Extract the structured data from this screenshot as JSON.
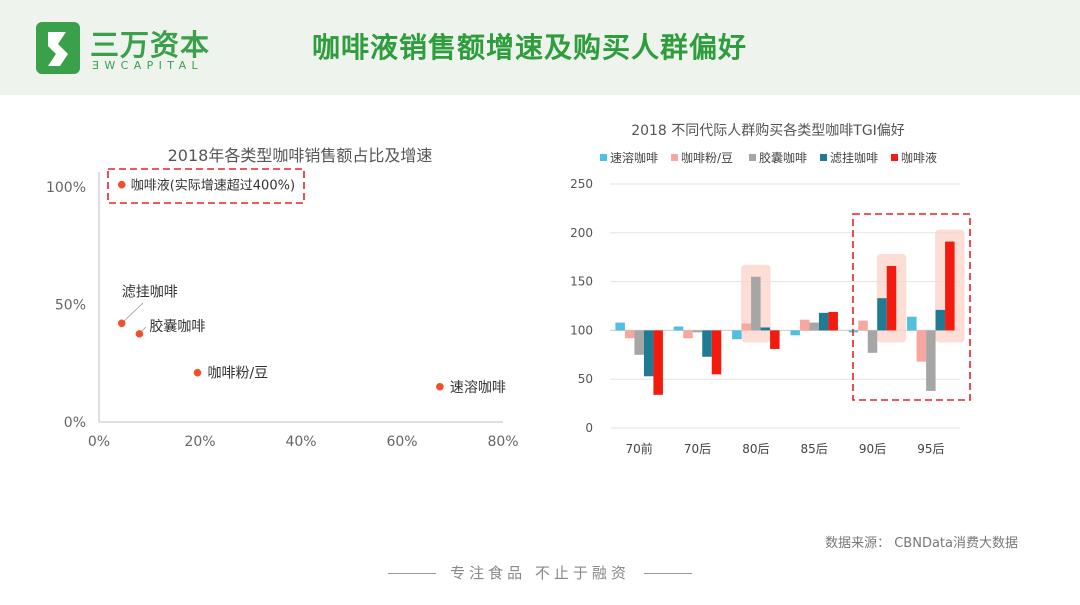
{
  "header": {
    "logo_cn": "三万资本",
    "logo_en": "ƎWCAPITAL",
    "title": "咖啡液销售额增速及购买人群偏好"
  },
  "colors": {
    "brand_green": "#3aa14a",
    "scatter_dot": "#f0502a",
    "highlight_box": "#e8212a",
    "highlight_fill": "#fbd3c8"
  },
  "chart_data": [
    {
      "type": "scatter",
      "title": "2018年各类型咖啡销售额占比及增速",
      "xlabel": "",
      "ylabel": "",
      "xlim": [
        0,
        80
      ],
      "ylim": [
        0,
        100
      ],
      "x_ticks": [
        "0%",
        "20%",
        "40%",
        "60%",
        "80%"
      ],
      "y_ticks": [
        "0%",
        "50%",
        "100%"
      ],
      "points": [
        {
          "label": "咖啡液(实际增速超过400%)",
          "x": 4.5,
          "y": 101
        },
        {
          "label": "滤挂咖啡",
          "x": 4.5,
          "y": 42
        },
        {
          "label": "胶囊咖啡",
          "x": 8,
          "y": 37.5
        },
        {
          "label": "咖啡粉/豆",
          "x": 19.5,
          "y": 21
        },
        {
          "label": "速溶咖啡",
          "x": 67.5,
          "y": 15
        }
      ],
      "highlight": "咖啡液(实际增速超过400%)",
      "grid": false
    },
    {
      "type": "bar",
      "title": "2018 不同代际人群购买各类型咖啡TGI偏好",
      "categories": [
        "70前",
        "70后",
        "80后",
        "85后",
        "90后",
        "95后"
      ],
      "ylim": [
        0,
        250
      ],
      "y_ticks": [
        "0",
        "50",
        "100",
        "150",
        "200",
        "250"
      ],
      "baseline": 100,
      "legend_position": "top",
      "grid": true,
      "series": [
        {
          "name": "速溶咖啡",
          "color": "#4fc0dd",
          "values": [
            108,
            104,
            91,
            95,
            98,
            114
          ]
        },
        {
          "name": "咖啡粉/豆",
          "color": "#f8a7a0",
          "values": [
            92,
            92,
            107,
            111,
            110,
            68
          ]
        },
        {
          "name": "胶囊咖啡",
          "color": "#a6a6a6",
          "values": [
            75,
            98,
            155,
            108,
            77,
            38
          ]
        },
        {
          "name": "滤挂咖啡",
          "color": "#1f7a94",
          "values": [
            53,
            73,
            103,
            118,
            133,
            121
          ]
        },
        {
          "name": "咖啡液",
          "color": "#f21b0d",
          "values": [
            34,
            55,
            81,
            119,
            166,
            191
          ]
        }
      ],
      "highlight_groups": [
        "90后",
        "95后"
      ],
      "highlight_bars": [
        {
          "category": "80后",
          "series": "胶囊咖啡"
        },
        {
          "category": "90后",
          "series": "咖啡液"
        },
        {
          "category": "95后",
          "series": "咖啡液"
        }
      ]
    }
  ],
  "source": "数据来源： CBNData消费大数据",
  "footer": "专注食品  不止于融资"
}
